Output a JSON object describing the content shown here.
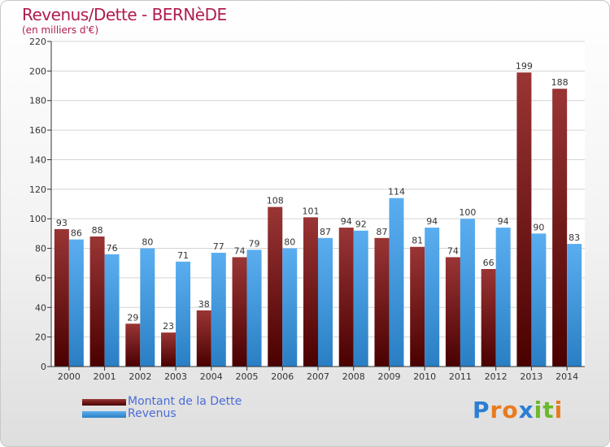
{
  "header": {
    "title": "Revenus/Dette - BERNèDE",
    "subtitle": "(en milliers d'€)"
  },
  "chart_data": {
    "type": "bar",
    "title": "Revenus/Dette - BERNèDE",
    "subtitle": "(en milliers d'€)",
    "categories": [
      "2000",
      "2001",
      "2002",
      "2003",
      "2004",
      "2005",
      "2006",
      "2007",
      "2008",
      "2009",
      "2010",
      "2011",
      "2012",
      "2013",
      "2014"
    ],
    "series": [
      {
        "name": "Montant de la Dette",
        "color": "#7a1a1a",
        "values": [
          93,
          88,
          29,
          23,
          38,
          74,
          108,
          101,
          94,
          87,
          81,
          74,
          66,
          199,
          188
        ]
      },
      {
        "name": "Revenus",
        "color": "#3b9be0",
        "values": [
          86,
          76,
          80,
          71,
          77,
          79,
          80,
          87,
          92,
          114,
          94,
          100,
          94,
          90,
          83
        ]
      }
    ],
    "ylim": [
      0,
      220
    ],
    "yticks": [
      0,
      20,
      40,
      60,
      80,
      100,
      120,
      140,
      160,
      180,
      200,
      220
    ],
    "grid": true,
    "legend_position": "bottom-left"
  },
  "legend": {
    "items": [
      {
        "label": "Montant de la Dette",
        "color": "#6b0f0f"
      },
      {
        "label": "Revenus",
        "color": "#3b9be0"
      }
    ]
  },
  "logo": {
    "letters": [
      "P",
      "r",
      "o",
      "x",
      "i",
      "t",
      "i"
    ],
    "colors": [
      "#2a7fd4",
      "#e87b1e",
      "#e87b1e",
      "#2a7fd4",
      "#6cb82c",
      "#6cb82c",
      "#e87b1e"
    ]
  }
}
